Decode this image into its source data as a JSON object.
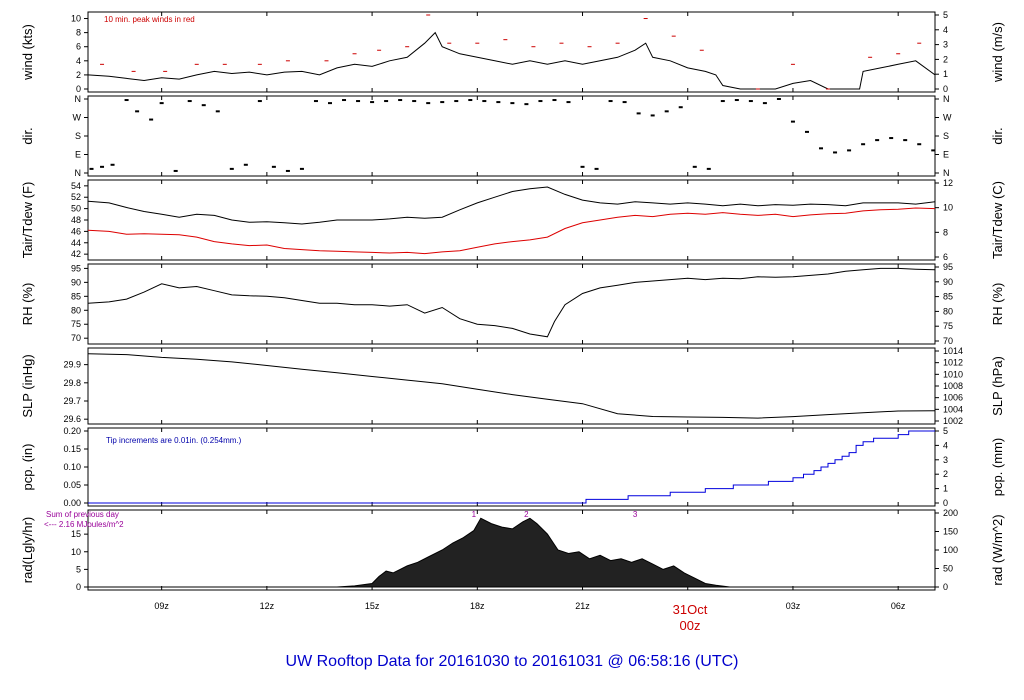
{
  "title": "UW Rooftop Data for 20161030  to  20161031 @ 06:58:16  (UTC)",
  "date_label": {
    "day": "31Oct",
    "hour": "00z"
  },
  "colors": {
    "line": "#000000",
    "peak": "#cc0000",
    "dew": "#dd0000",
    "precip": "#0000dd",
    "note_blue": "#0000aa",
    "note_purple": "#990099",
    "frame": "#000000"
  },
  "x_axis": {
    "range_hours": [
      6.9,
      31.05
    ],
    "ticks": [
      {
        "hour": 9,
        "label": "09z"
      },
      {
        "hour": 12,
        "label": "12z"
      },
      {
        "hour": 15,
        "label": "15z"
      },
      {
        "hour": 18,
        "label": "18z"
      },
      {
        "hour": 21,
        "label": "21z"
      },
      {
        "hour": 24,
        "label": ""
      },
      {
        "hour": 27,
        "label": "03z"
      },
      {
        "hour": 30,
        "label": "06z"
      }
    ]
  },
  "chart_data": [
    {
      "id": "wind",
      "type": "line",
      "ylabel_left": "wind (kts)",
      "ylabel_right": "wind (m/s)",
      "ylim": [
        0,
        10.5
      ],
      "left_ticks": [
        "0",
        "2",
        "4",
        "6",
        "8",
        "10"
      ],
      "right_ticks": [
        "0",
        "1",
        "2",
        "3",
        "4",
        "5"
      ],
      "note": "10 min. peak winds in red",
      "series": [
        {
          "name": "wind",
          "color": "#000000",
          "x": [
            6.9,
            7.5,
            8.0,
            8.5,
            9.0,
            9.5,
            10.0,
            10.5,
            11.0,
            11.5,
            12.0,
            12.5,
            13.0,
            13.5,
            14.0,
            14.5,
            15.0,
            15.5,
            16.0,
            16.5,
            16.8,
            17.0,
            17.5,
            18.0,
            18.5,
            19.0,
            19.5,
            20.0,
            20.5,
            21.0,
            21.5,
            22.0,
            22.5,
            22.8,
            23.0,
            23.5,
            24.0,
            24.5,
            24.8,
            25.0,
            25.5,
            26.0,
            26.5,
            27.0,
            27.5,
            28.0,
            28.5,
            28.9,
            29.0,
            29.5,
            30.0,
            30.5,
            31.05
          ],
          "y": [
            2,
            1.8,
            1.5,
            1.2,
            1.6,
            1.4,
            2.0,
            2.5,
            2.2,
            2.4,
            2.0,
            2.4,
            2.5,
            2.0,
            3.0,
            3.5,
            3.2,
            4.0,
            4.5,
            6.5,
            8.0,
            6.0,
            5.0,
            4.5,
            4.0,
            3.5,
            4.0,
            3.5,
            4.0,
            3.5,
            4.0,
            4.5,
            5.5,
            6.5,
            4.5,
            4.0,
            3.0,
            2.5,
            2.0,
            0.5,
            0,
            0,
            0,
            0.8,
            1.2,
            0,
            0,
            0,
            2.5,
            3.0,
            3.5,
            4.0,
            2.0
          ]
        },
        {
          "name": "peak",
          "color": "#cc0000",
          "x": [
            7.3,
            8.2,
            9.1,
            10.0,
            10.8,
            11.8,
            12.6,
            13.7,
            14.5,
            15.2,
            16.0,
            16.6,
            17.2,
            18.0,
            18.8,
            19.6,
            20.4,
            21.2,
            22.0,
            22.8,
            23.6,
            24.4,
            26.0,
            27.0,
            28.0,
            29.2,
            30.0,
            30.6
          ],
          "y": [
            3.5,
            2.5,
            2.5,
            3.5,
            3.5,
            3.5,
            4.0,
            4.0,
            5.0,
            5.5,
            6.0,
            10.5,
            6.5,
            6.5,
            7.0,
            6.0,
            6.5,
            6.0,
            6.5,
            10.0,
            7.5,
            5.5,
            0,
            3.5,
            0,
            4.5,
            5.0,
            6.5
          ]
        }
      ]
    },
    {
      "id": "direction",
      "type": "scatter",
      "ylabel_left": "dir.",
      "ylabel_right": "dir.",
      "ylim": [
        0,
        360
      ],
      "left_ticks": [
        "N",
        "E",
        "S",
        "W",
        "N"
      ],
      "right_ticks": [
        "N",
        "E",
        "S",
        "W",
        "N"
      ],
      "series": [
        {
          "name": "direction",
          "color": "#000000",
          "x": [
            7.0,
            7.3,
            7.6,
            8.0,
            8.3,
            8.7,
            9.0,
            9.4,
            9.8,
            10.2,
            10.6,
            11.0,
            11.4,
            11.8,
            12.2,
            12.6,
            13.0,
            13.4,
            13.8,
            14.2,
            14.6,
            15.0,
            15.4,
            15.8,
            16.2,
            16.6,
            17.0,
            17.4,
            17.8,
            18.2,
            18.6,
            19.0,
            19.4,
            19.8,
            20.2,
            20.6,
            21.0,
            21.4,
            21.8,
            22.2,
            22.6,
            23.0,
            23.4,
            23.8,
            24.2,
            24.6,
            25.0,
            25.4,
            25.8,
            26.2,
            26.6,
            27.0,
            27.4,
            27.8,
            28.2,
            28.6,
            29.0,
            29.4,
            29.8,
            30.2,
            30.6,
            31.0
          ],
          "y": [
            20,
            30,
            40,
            355,
            300,
            260,
            340,
            10,
            350,
            330,
            300,
            20,
            40,
            350,
            30,
            10,
            20,
            350,
            340,
            355,
            350,
            345,
            350,
            355,
            350,
            340,
            345,
            350,
            355,
            350,
            345,
            340,
            335,
            350,
            355,
            345,
            30,
            20,
            350,
            345,
            290,
            280,
            300,
            320,
            30,
            20,
            350,
            355,
            350,
            340,
            360,
            250,
            200,
            120,
            100,
            110,
            140,
            160,
            170,
            160,
            140,
            110
          ]
        }
      ]
    },
    {
      "id": "temperature",
      "type": "line",
      "ylabel_left": "Tair/Tdew (F)",
      "ylabel_right": "Tair/Tdew (C)",
      "ylim": [
        41.5,
        54.5
      ],
      "left_ticks": [
        "42",
        "44",
        "46",
        "48",
        "50",
        "52",
        "54"
      ],
      "right_ticks": [
        "6",
        "8",
        "10",
        "12"
      ],
      "series": [
        {
          "name": "Tair",
          "color": "#000000",
          "x": [
            6.9,
            7.5,
            8.0,
            8.5,
            9.0,
            9.5,
            10.0,
            10.5,
            11.0,
            11.5,
            12.0,
            12.5,
            13.0,
            13.5,
            14.0,
            14.5,
            15.0,
            15.5,
            16.0,
            16.5,
            17.0,
            17.5,
            18.0,
            18.5,
            19.0,
            19.5,
            20.0,
            20.5,
            21.0,
            21.5,
            22.0,
            22.5,
            23.0,
            23.5,
            24.0,
            24.5,
            25.0,
            25.5,
            26.0,
            26.5,
            27.0,
            27.5,
            28.0,
            28.5,
            29.0,
            29.5,
            30.0,
            30.5,
            31.05
          ],
          "y": [
            51.3,
            51.0,
            50.2,
            49.5,
            49.0,
            48.5,
            49.0,
            48.8,
            48.0,
            47.6,
            47.7,
            47.5,
            47.3,
            47.6,
            48.0,
            48.0,
            48.0,
            48.2,
            48.5,
            48.3,
            48.5,
            49.8,
            51.0,
            52.0,
            53.0,
            53.5,
            53.8,
            52.5,
            51.5,
            51.0,
            50.8,
            51.2,
            51.0,
            50.8,
            51.0,
            50.8,
            50.5,
            50.8,
            50.5,
            50.7,
            50.6,
            50.8,
            50.7,
            50.5,
            51.0,
            51.0,
            51.0,
            50.8,
            51.2
          ]
        },
        {
          "name": "Tdew",
          "color": "#dd0000",
          "x": [
            6.9,
            7.5,
            8.0,
            8.5,
            9.0,
            9.5,
            10.0,
            10.5,
            11.0,
            11.5,
            12.0,
            12.5,
            13.0,
            13.5,
            14.0,
            14.5,
            15.0,
            15.5,
            16.0,
            16.5,
            17.0,
            17.5,
            18.0,
            18.5,
            19.0,
            19.5,
            20.0,
            20.5,
            21.0,
            21.5,
            22.0,
            22.5,
            23.0,
            23.5,
            24.0,
            24.5,
            25.0,
            25.5,
            26.0,
            26.5,
            27.0,
            27.5,
            28.0,
            28.5,
            29.0,
            29.5,
            30.0,
            30.5,
            31.05
          ],
          "y": [
            46.2,
            46.0,
            45.5,
            45.6,
            45.5,
            45.4,
            45.0,
            44.2,
            43.8,
            43.5,
            43.6,
            43.0,
            42.8,
            42.6,
            42.5,
            42.4,
            42.3,
            42.2,
            42.3,
            42.1,
            42.4,
            42.6,
            43.2,
            43.8,
            44.2,
            44.5,
            45.0,
            46.5,
            47.5,
            48.0,
            48.5,
            48.8,
            48.6,
            49.0,
            49.2,
            49.0,
            49.3,
            49.0,
            48.8,
            49.0,
            48.6,
            48.9,
            49.1,
            49.2,
            49.6,
            49.8,
            49.9,
            50.1,
            50.0
          ]
        }
      ]
    },
    {
      "id": "humidity",
      "type": "line",
      "ylabel_left": "RH (%)",
      "ylabel_right": "RH (%)",
      "ylim": [
        69,
        95.5
      ],
      "left_ticks": [
        "70",
        "75",
        "80",
        "85",
        "90",
        "95"
      ],
      "right_ticks": [
        "70",
        "75",
        "80",
        "85",
        "90",
        "95"
      ],
      "series": [
        {
          "name": "RH",
          "color": "#000000",
          "x": [
            6.9,
            7.5,
            8.0,
            8.5,
            9.0,
            9.5,
            10.0,
            10.5,
            11.0,
            11.5,
            12.0,
            12.5,
            13.0,
            13.5,
            14.0,
            14.5,
            15.0,
            15.5,
            16.0,
            16.5,
            17.0,
            17.5,
            18.0,
            18.5,
            19.0,
            19.5,
            20.0,
            20.2,
            20.5,
            21.0,
            21.5,
            22.0,
            22.5,
            23.0,
            23.5,
            24.0,
            24.5,
            25.0,
            25.5,
            26.0,
            26.5,
            27.0,
            27.5,
            28.0,
            28.5,
            29.0,
            29.5,
            30.0,
            30.5,
            31.05
          ],
          "y": [
            82.5,
            83.0,
            84.0,
            86.5,
            89.5,
            88.0,
            88.5,
            87.0,
            85.5,
            85.2,
            85.0,
            84.5,
            83.5,
            82.5,
            82.5,
            82.0,
            82.0,
            81.5,
            82.0,
            79.0,
            81.0,
            77.0,
            75.0,
            74.5,
            73.5,
            71.5,
            70.5,
            76.0,
            82.0,
            86.0,
            88.0,
            89.0,
            90.0,
            90.5,
            91.0,
            91.5,
            91.0,
            91.5,
            91.3,
            92.0,
            91.8,
            92.0,
            92.5,
            93.0,
            94.0,
            94.5,
            95.0,
            95.0,
            94.7,
            94.5
          ]
        }
      ]
    },
    {
      "id": "pressure",
      "type": "line",
      "ylabel_left": "SLP (inHg)",
      "ylabel_right": "SLP (hPa)",
      "ylim": [
        29.59,
        29.975
      ],
      "left_ticks": [
        "29.6",
        "29.7",
        "29.8",
        "29.9"
      ],
      "right_ticks": [
        "1002",
        "1004",
        "1006",
        "1008",
        "1010",
        "1012",
        "1014"
      ],
      "series": [
        {
          "name": "SLP",
          "color": "#000000",
          "x": [
            6.9,
            8.0,
            9.0,
            10.0,
            11.0,
            12.0,
            13.0,
            14.0,
            15.0,
            16.0,
            17.0,
            18.0,
            19.0,
            20.0,
            21.0,
            22.0,
            23.0,
            24.0,
            25.0,
            26.0,
            27.0,
            28.0,
            29.0,
            30.0,
            31.05
          ],
          "y": [
            29.96,
            29.955,
            29.94,
            29.93,
            29.915,
            29.895,
            29.875,
            29.855,
            29.835,
            29.815,
            29.795,
            29.765,
            29.735,
            29.71,
            29.685,
            29.63,
            29.615,
            29.612,
            29.61,
            29.606,
            29.614,
            29.625,
            29.635,
            29.645,
            29.646
          ]
        }
      ]
    },
    {
      "id": "precipitation",
      "type": "line",
      "ylabel_left": "pcp. (in)",
      "ylabel_right": "pcp. (mm)",
      "ylim": [
        0,
        0.2
      ],
      "left_ticks": [
        "0.00",
        "0.05",
        "0.10",
        "0.15",
        "0.20"
      ],
      "right_ticks": [
        "0",
        "1",
        "2",
        "3",
        "4",
        "5"
      ],
      "note": "Tip increments are 0.01in. (0.254mm.)",
      "series": [
        {
          "name": "precip",
          "color": "#0000dd",
          "x": [
            6.9,
            21.0,
            21.1,
            22.0,
            22.3,
            23.5,
            24.0,
            24.5,
            25.0,
            25.3,
            26.0,
            26.3,
            26.6,
            27.0,
            27.3,
            27.6,
            27.8,
            28.0,
            28.2,
            28.4,
            28.6,
            28.8,
            29.0,
            29.3,
            29.6,
            30.0,
            30.3,
            31.05
          ],
          "y": [
            0,
            0,
            0.01,
            0.01,
            0.02,
            0.03,
            0.03,
            0.04,
            0.04,
            0.05,
            0.05,
            0.06,
            0.06,
            0.07,
            0.08,
            0.09,
            0.1,
            0.11,
            0.12,
            0.13,
            0.14,
            0.16,
            0.17,
            0.18,
            0.18,
            0.19,
            0.2,
            0.2
          ]
        }
      ]
    },
    {
      "id": "radiation",
      "type": "area",
      "ylabel_left": "rad(Lgly/hr)",
      "ylabel_right": "rad (W/m^2)",
      "ylim": [
        0,
        21
      ],
      "left_ticks": [
        "0",
        "5",
        "10",
        "15"
      ],
      "right_ticks": [
        "0",
        "50",
        "100",
        "150",
        "200"
      ],
      "note_line1": "Sum of previous day",
      "note_line2": "<--- 2.16 MJoules/m^2",
      "markers": [
        {
          "hour": 17.9,
          "label": "1"
        },
        {
          "hour": 19.4,
          "label": "2"
        },
        {
          "hour": 22.5,
          "label": "3"
        }
      ],
      "series": [
        {
          "name": "radiation",
          "color": "#000000",
          "x": [
            6.9,
            14.0,
            14.5,
            15.0,
            15.2,
            15.4,
            15.6,
            15.8,
            16.0,
            16.3,
            16.6,
            17.0,
            17.3,
            17.6,
            17.9,
            18.1,
            18.4,
            18.7,
            19.0,
            19.3,
            19.5,
            19.7,
            20.0,
            20.3,
            20.6,
            20.9,
            21.2,
            21.5,
            21.8,
            22.1,
            22.4,
            22.7,
            23.0,
            23.3,
            23.6,
            23.9,
            24.2,
            24.5,
            24.8,
            25.2,
            31.05
          ],
          "y": [
            0,
            0,
            0.3,
            1.0,
            3.0,
            4.5,
            4.0,
            5.0,
            6.0,
            7.0,
            8.5,
            10.5,
            12.5,
            14.0,
            16.0,
            19.5,
            18.0,
            17.0,
            16.5,
            18.5,
            19.5,
            18.0,
            15.0,
            10.5,
            9.5,
            10.0,
            8.0,
            9.0,
            7.5,
            8.0,
            7.0,
            8.0,
            6.5,
            5.0,
            6.0,
            4.0,
            2.5,
            1.0,
            0.5,
            0,
            0
          ]
        }
      ]
    }
  ]
}
